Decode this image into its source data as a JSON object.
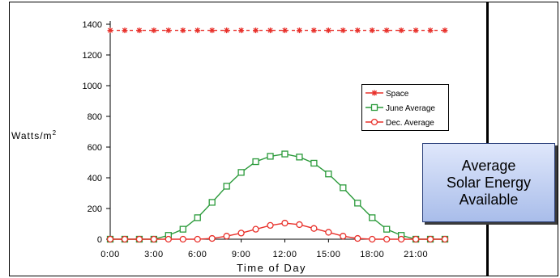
{
  "callout": {
    "text": "Average\nSolar Energy\nAvailable"
  },
  "chart_data": {
    "type": "line",
    "title": "",
    "xlabel": "Time of Day",
    "ylabel": "Watts/m",
    "ylabel_superscript": "2",
    "xlim": [
      0,
      23
    ],
    "ylim": [
      0,
      1400
    ],
    "x_ticks": [
      "0:00",
      "3:00",
      "6:00",
      "9:00",
      "12:00",
      "15:00",
      "18:00",
      "21:00"
    ],
    "y_ticks": [
      "0",
      "200",
      "400",
      "600",
      "800",
      "1000",
      "1200",
      "1400"
    ],
    "grid": false,
    "legend_position": "right",
    "x": [
      0,
      1,
      2,
      3,
      4,
      5,
      6,
      7,
      8,
      9,
      10,
      11,
      12,
      13,
      14,
      15,
      16,
      17,
      18,
      19,
      20,
      21,
      22,
      23
    ],
    "series": [
      {
        "name": "Space",
        "color": "#e8302a",
        "marker": "asterisk",
        "values": [
          1360,
          1360,
          1360,
          1360,
          1360,
          1360,
          1360,
          1360,
          1360,
          1360,
          1360,
          1360,
          1360,
          1360,
          1360,
          1360,
          1360,
          1360,
          1360,
          1360,
          1360,
          1360,
          1360,
          1360
        ]
      },
      {
        "name": "June Average",
        "color": "#2a9a3a",
        "marker": "square",
        "values": [
          0,
          0,
          0,
          0,
          25,
          65,
          140,
          240,
          345,
          435,
          505,
          540,
          555,
          535,
          495,
          425,
          335,
          235,
          140,
          65,
          25,
          0,
          0,
          0
        ]
      },
      {
        "name": "Dec. Average",
        "color": "#e8302a",
        "marker": "circle",
        "values": [
          0,
          0,
          0,
          0,
          0,
          0,
          0,
          5,
          20,
          40,
          65,
          90,
          105,
          95,
          70,
          45,
          20,
          5,
          0,
          0,
          0,
          0,
          0,
          0
        ]
      }
    ]
  }
}
